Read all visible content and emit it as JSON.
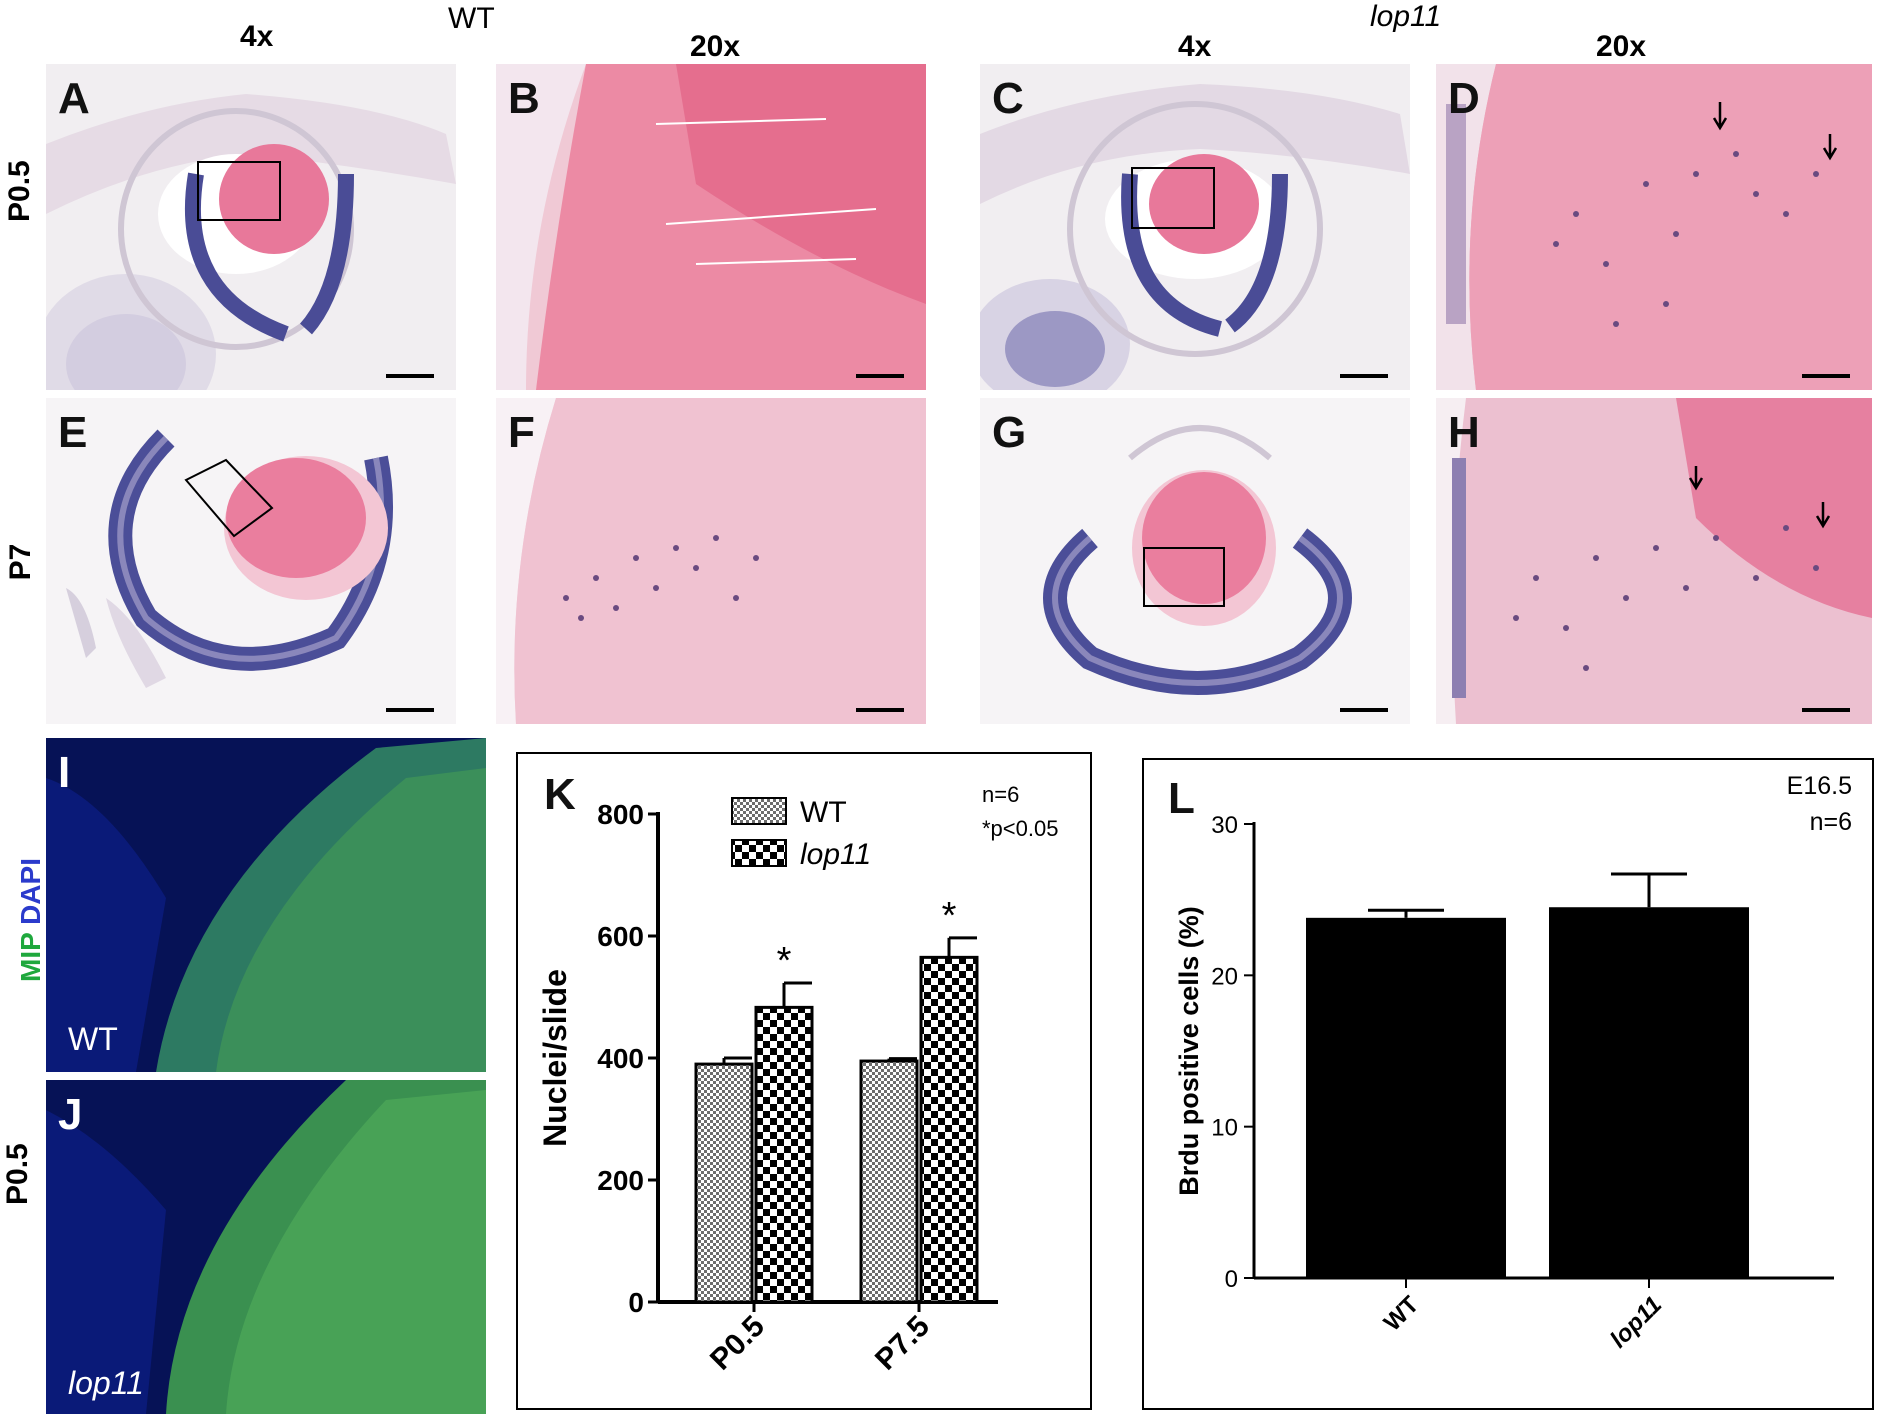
{
  "headers": {
    "wt_group": "WT",
    "lop11_group": "lop11",
    "col_4x_left": "4x",
    "col_20x_left": "20x",
    "col_4x_right": "4x",
    "col_20x_right": "20x"
  },
  "row_labels": {
    "row1": "P0.5",
    "row2": "P7",
    "fluor": "P0.5"
  },
  "panels": {
    "A": "A",
    "B": "B",
    "C": "C",
    "D": "D",
    "E": "E",
    "F": "F",
    "G": "G",
    "H": "H",
    "I": "I",
    "J": "J",
    "K": "K",
    "L": "L"
  },
  "fluor": {
    "stain_mip": "MIP",
    "stain_dapi": "DAPI",
    "label_wt": "WT",
    "label_lop11": "lop11"
  },
  "chart_data": [
    {
      "id": "K",
      "type": "bar",
      "categories": [
        "P0.5",
        "P7.5"
      ],
      "series": [
        {
          "name": "WT",
          "values": [
            390,
            395
          ],
          "errors": [
            10,
            4
          ]
        },
        {
          "name": "lop11",
          "values": [
            483,
            565
          ],
          "errors": [
            40,
            32
          ]
        }
      ],
      "significance": [
        "*",
        "*"
      ],
      "annotations": [
        "n=6",
        "*p<0.05"
      ],
      "ylabel": "Nuclei/slide",
      "ylim": [
        0,
        800
      ],
      "yticks": [
        0,
        200,
        400,
        600,
        800
      ],
      "legend": "top-left"
    },
    {
      "id": "L",
      "type": "bar",
      "categories": [
        "WT",
        "lop11"
      ],
      "values": [
        23.8,
        24.5
      ],
      "errors": [
        0.5,
        2.2
      ],
      "annotations": [
        "E16.5",
        "n=6"
      ],
      "ylabel": "Brdu positive cells (%)",
      "ylim": [
        0,
        30
      ],
      "yticks": [
        0,
        10,
        20,
        30
      ]
    }
  ]
}
